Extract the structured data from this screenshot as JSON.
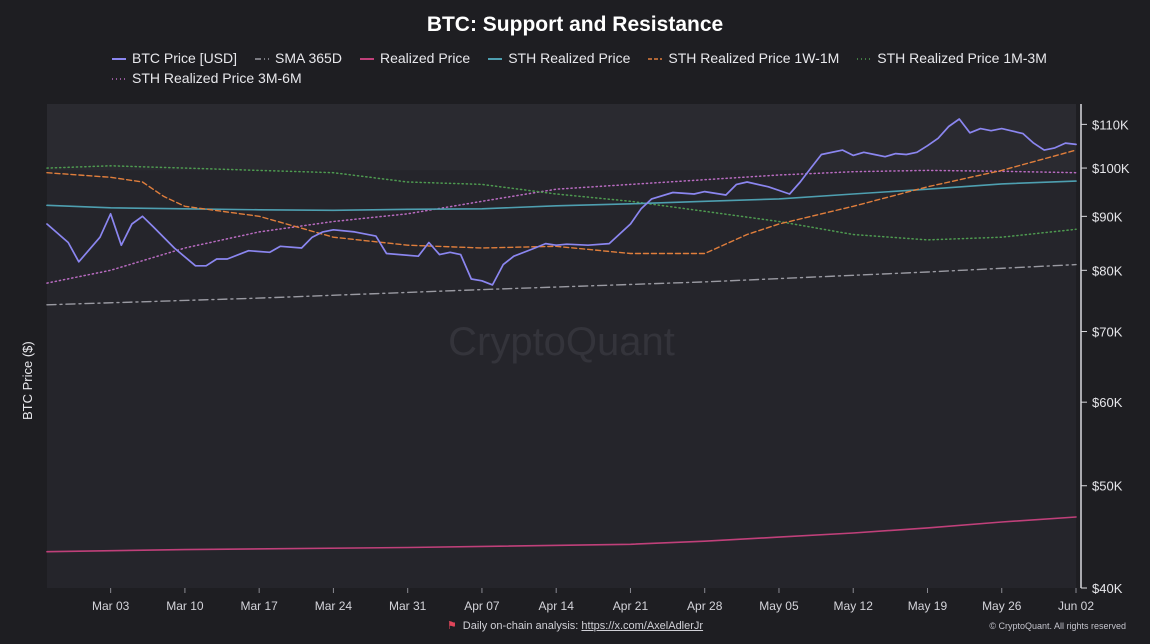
{
  "chart_data": {
    "type": "line",
    "title": "BTC: Support and Resistance",
    "ylabel": "BTC Price ($)",
    "y_scale": "log",
    "ylim": [
      40000,
      115000
    ],
    "yticks": [
      40000,
      50000,
      60000,
      70000,
      80000,
      90000,
      100000,
      110000
    ],
    "ytick_labels": [
      "$40K",
      "$50K",
      "$60K",
      "$70K",
      "$80K",
      "$90K",
      "$100K",
      "$110K"
    ],
    "x_start": "2025-02-25",
    "x_end": "2025-06-02",
    "x_ticks": [
      "2025-03-03",
      "2025-03-10",
      "2025-03-17",
      "2025-03-24",
      "2025-03-31",
      "2025-04-07",
      "2025-04-14",
      "2025-04-21",
      "2025-04-28",
      "2025-05-05",
      "2025-05-12",
      "2025-05-19",
      "2025-05-26",
      "2025-06-02"
    ],
    "x_tick_labels": [
      "Mar 03",
      "Mar 10",
      "Mar 17",
      "Mar 24",
      "Mar 31",
      "Apr 07",
      "Apr 14",
      "Apr 21",
      "Apr 28",
      "May 05",
      "May 12",
      "May 19",
      "May 26",
      "Jun 02"
    ],
    "grid": false,
    "legend_position": "top",
    "watermark": "CryptoQuant",
    "series": [
      {
        "name": "BTC Price [USD]",
        "color": "#8b86f0",
        "style": "solid",
        "points": [
          [
            "2025-02-25",
            88500
          ],
          [
            "2025-02-27",
            85000
          ],
          [
            "2025-02-28",
            81500
          ],
          [
            "2025-03-02",
            86000
          ],
          [
            "2025-03-03",
            90500
          ],
          [
            "2025-03-04",
            84500
          ],
          [
            "2025-03-05",
            88500
          ],
          [
            "2025-03-06",
            90000
          ],
          [
            "2025-03-07",
            88000
          ],
          [
            "2025-03-09",
            84000
          ],
          [
            "2025-03-11",
            80800
          ],
          [
            "2025-03-12",
            80800
          ],
          [
            "2025-03-13",
            82000
          ],
          [
            "2025-03-14",
            82000
          ],
          [
            "2025-03-16",
            83500
          ],
          [
            "2025-03-18",
            83200
          ],
          [
            "2025-03-19",
            84300
          ],
          [
            "2025-03-21",
            84000
          ],
          [
            "2025-03-22",
            86000
          ],
          [
            "2025-03-23",
            87000
          ],
          [
            "2025-03-24",
            87400
          ],
          [
            "2025-03-26",
            87000
          ],
          [
            "2025-03-28",
            86200
          ],
          [
            "2025-03-29",
            83000
          ],
          [
            "2025-04-01",
            82500
          ],
          [
            "2025-04-02",
            85000
          ],
          [
            "2025-04-03",
            82800
          ],
          [
            "2025-04-04",
            83200
          ],
          [
            "2025-04-05",
            82800
          ],
          [
            "2025-04-06",
            78500
          ],
          [
            "2025-04-07",
            78200
          ],
          [
            "2025-04-08",
            77500
          ],
          [
            "2025-04-09",
            81000
          ],
          [
            "2025-04-10",
            82500
          ],
          [
            "2025-04-12",
            84000
          ],
          [
            "2025-04-13",
            84800
          ],
          [
            "2025-04-14",
            84500
          ],
          [
            "2025-04-15",
            84700
          ],
          [
            "2025-04-17",
            84500
          ],
          [
            "2025-04-19",
            84800
          ],
          [
            "2025-04-21",
            88500
          ],
          [
            "2025-04-22",
            91500
          ],
          [
            "2025-04-23",
            93500
          ],
          [
            "2025-04-25",
            94800
          ],
          [
            "2025-04-27",
            94500
          ],
          [
            "2025-04-28",
            95000
          ],
          [
            "2025-04-30",
            94300
          ],
          [
            "2025-05-01",
            96500
          ],
          [
            "2025-05-02",
            97000
          ],
          [
            "2025-05-04",
            96000
          ],
          [
            "2025-05-06",
            94500
          ],
          [
            "2025-05-07",
            97000
          ],
          [
            "2025-05-08",
            100000
          ],
          [
            "2025-05-09",
            103000
          ],
          [
            "2025-05-11",
            104000
          ],
          [
            "2025-05-12",
            102800
          ],
          [
            "2025-05-13",
            103500
          ],
          [
            "2025-05-14",
            103000
          ],
          [
            "2025-05-15",
            102500
          ],
          [
            "2025-05-16",
            103200
          ],
          [
            "2025-05-17",
            103000
          ],
          [
            "2025-05-18",
            103500
          ],
          [
            "2025-05-19",
            105000
          ],
          [
            "2025-05-20",
            106700
          ],
          [
            "2025-05-21",
            109500
          ],
          [
            "2025-05-22",
            111300
          ],
          [
            "2025-05-23",
            108000
          ],
          [
            "2025-05-24",
            109000
          ],
          [
            "2025-05-25",
            108500
          ],
          [
            "2025-05-26",
            109000
          ],
          [
            "2025-05-27",
            108400
          ],
          [
            "2025-05-28",
            107800
          ],
          [
            "2025-05-29",
            105600
          ],
          [
            "2025-05-30",
            104000
          ],
          [
            "2025-05-31",
            104500
          ],
          [
            "2025-06-01",
            105600
          ],
          [
            "2025-06-02",
            105300
          ]
        ]
      },
      {
        "name": "SMA 365D",
        "color": "#9a9aa2",
        "style": "dashdot",
        "points": [
          [
            "2025-02-25",
            74200
          ],
          [
            "2025-03-17",
            75300
          ],
          [
            "2025-04-07",
            76700
          ],
          [
            "2025-04-28",
            78000
          ],
          [
            "2025-05-19",
            79700
          ],
          [
            "2025-06-02",
            81000
          ]
        ]
      },
      {
        "name": "Realized Price",
        "color": "#c0407a",
        "style": "solid",
        "points": [
          [
            "2025-02-25",
            43300
          ],
          [
            "2025-03-10",
            43500
          ],
          [
            "2025-03-31",
            43700
          ],
          [
            "2025-04-21",
            44000
          ],
          [
            "2025-04-28",
            44300
          ],
          [
            "2025-05-05",
            44700
          ],
          [
            "2025-05-12",
            45100
          ],
          [
            "2025-05-19",
            45600
          ],
          [
            "2025-05-26",
            46200
          ],
          [
            "2025-06-02",
            46700
          ]
        ]
      },
      {
        "name": "STH Realized Price",
        "color": "#4e9fb0",
        "style": "solid",
        "points": [
          [
            "2025-02-25",
            92200
          ],
          [
            "2025-03-03",
            91700
          ],
          [
            "2025-03-10",
            91500
          ],
          [
            "2025-03-17",
            91300
          ],
          [
            "2025-03-24",
            91200
          ],
          [
            "2025-03-31",
            91400
          ],
          [
            "2025-04-07",
            91500
          ],
          [
            "2025-04-14",
            92100
          ],
          [
            "2025-04-21",
            92500
          ],
          [
            "2025-04-28",
            93000
          ],
          [
            "2025-05-05",
            93500
          ],
          [
            "2025-05-12",
            94500
          ],
          [
            "2025-05-19",
            95500
          ],
          [
            "2025-05-26",
            96600
          ],
          [
            "2025-06-02",
            97200
          ]
        ]
      },
      {
        "name": "STH Realized Price 1W-1M",
        "color": "#e07e3c",
        "style": "dashed",
        "points": [
          [
            "2025-02-25",
            99000
          ],
          [
            "2025-03-03",
            98000
          ],
          [
            "2025-03-06",
            97000
          ],
          [
            "2025-03-08",
            94000
          ],
          [
            "2025-03-10",
            92000
          ],
          [
            "2025-03-17",
            90000
          ],
          [
            "2025-03-24",
            86000
          ],
          [
            "2025-03-31",
            84500
          ],
          [
            "2025-04-07",
            84000
          ],
          [
            "2025-04-14",
            84300
          ],
          [
            "2025-04-21",
            83000
          ],
          [
            "2025-04-28",
            83000
          ],
          [
            "2025-05-02",
            86500
          ],
          [
            "2025-05-05",
            88500
          ],
          [
            "2025-05-12",
            92000
          ],
          [
            "2025-05-19",
            96000
          ],
          [
            "2025-05-26",
            99500
          ],
          [
            "2025-06-02",
            104000
          ]
        ]
      },
      {
        "name": "STH Realized Price 1M-3M",
        "color": "#4e9a50",
        "style": "dotted",
        "points": [
          [
            "2025-02-25",
            100000
          ],
          [
            "2025-03-03",
            100500
          ],
          [
            "2025-03-10",
            100000
          ],
          [
            "2025-03-17",
            99500
          ],
          [
            "2025-03-24",
            99000
          ],
          [
            "2025-03-31",
            97000
          ],
          [
            "2025-04-07",
            96500
          ],
          [
            "2025-04-14",
            94500
          ],
          [
            "2025-04-21",
            93000
          ],
          [
            "2025-04-28",
            91000
          ],
          [
            "2025-05-05",
            89000
          ],
          [
            "2025-05-12",
            86500
          ],
          [
            "2025-05-19",
            85500
          ],
          [
            "2025-05-26",
            86000
          ],
          [
            "2025-06-02",
            87500
          ]
        ]
      },
      {
        "name": "STH Realized Price 3M-6M",
        "color": "#b86bc0",
        "style": "dotted",
        "points": [
          [
            "2025-02-25",
            77800
          ],
          [
            "2025-03-03",
            80000
          ],
          [
            "2025-03-10",
            84000
          ],
          [
            "2025-03-17",
            87000
          ],
          [
            "2025-03-24",
            89000
          ],
          [
            "2025-03-31",
            90500
          ],
          [
            "2025-04-07",
            93000
          ],
          [
            "2025-04-14",
            95500
          ],
          [
            "2025-04-21",
            96500
          ],
          [
            "2025-04-28",
            97500
          ],
          [
            "2025-05-05",
            98500
          ],
          [
            "2025-05-12",
            99200
          ],
          [
            "2025-05-19",
            99500
          ],
          [
            "2025-05-26",
            99300
          ],
          [
            "2025-06-02",
            99000
          ]
        ]
      }
    ]
  },
  "footer": {
    "text": "Daily on-chain analysis: ",
    "link": "https://x.com/AxelAdlerJr",
    "copyright": "© CryptoQuant. All rights reserved"
  }
}
